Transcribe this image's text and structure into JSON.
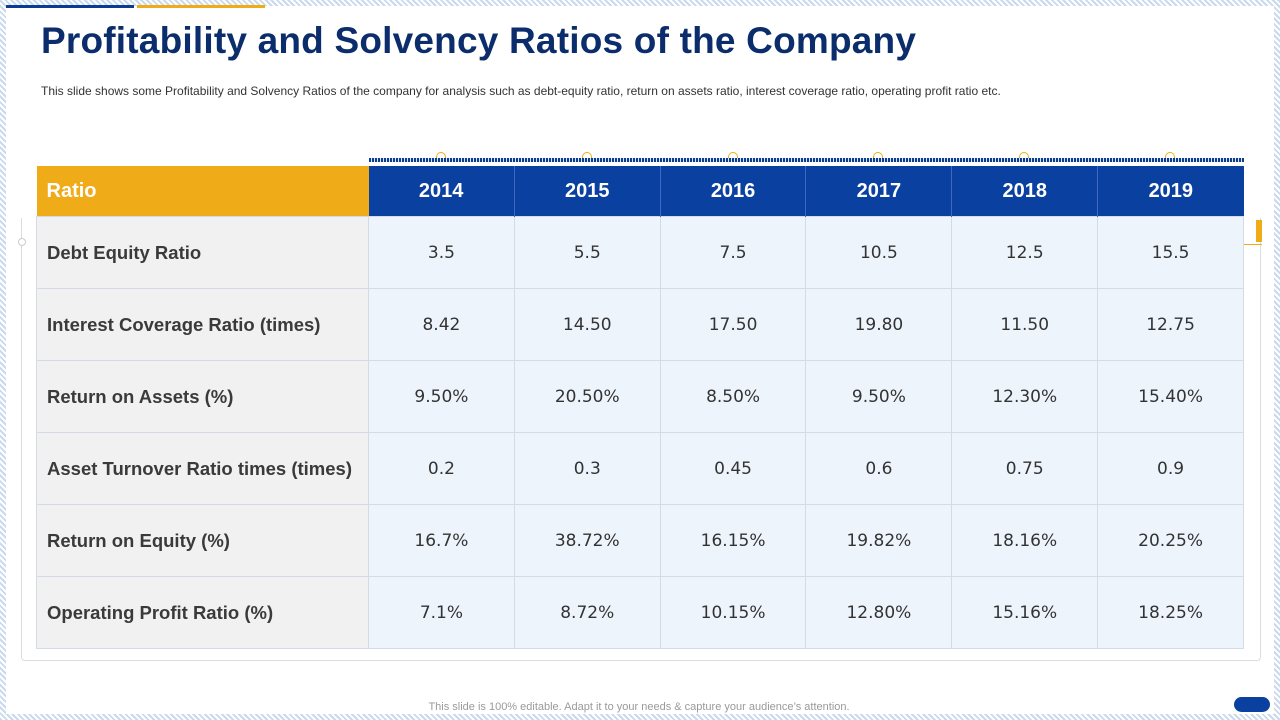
{
  "slide": {
    "title": "Profitability and Solvency Ratios of the Company",
    "subtitle": "This slide shows some Profitability and Solvency Ratios of the company for analysis such as debt-equity ratio, return on assets ratio, interest coverage  ratio, operating  profit ratio etc.",
    "footer_note": "This slide is 100% editable. Adapt it to your needs & capture your audience’s attention."
  },
  "colors": {
    "title": "#0b2d6b",
    "header_blue": "#0a40a0",
    "header_gold": "#f0ab18",
    "cell_bg": "#eef4fc",
    "label_bg": "#f1f1f1"
  },
  "table": {
    "label_header": "Ratio",
    "years": [
      "2014",
      "2015",
      "2016",
      "2017",
      "2018",
      "2019"
    ],
    "rows": [
      {
        "label": "Debt Equity Ratio",
        "values": [
          "3.5",
          "5.5",
          "7.5",
          "10.5",
          "12.5",
          "15.5"
        ]
      },
      {
        "label": "Interest Coverage Ratio (times)",
        "values": [
          "8.42",
          "14.50",
          "17.50",
          "19.80",
          "11.50",
          "12.75"
        ]
      },
      {
        "label": "Return on Assets (%)",
        "values": [
          "9.50%",
          "20.50%",
          "8.50%",
          "9.50%",
          "12.30%",
          "15.40%"
        ]
      },
      {
        "label": "Asset Turnover Ratio times (times)",
        "values": [
          "0.2",
          "0.3",
          "0.45",
          "0.6",
          "0.75",
          "0.9"
        ]
      },
      {
        "label": "Return on Equity (%)",
        "values": [
          "16.7%",
          "38.72%",
          "16.15%",
          "19.82%",
          "18.16%",
          "20.25%"
        ]
      },
      {
        "label": "Operating Profit Ratio (%)",
        "values": [
          "7.1%",
          "8.72%",
          "10.15%",
          "12.80%",
          "15.16%",
          "18.25%"
        ]
      }
    ]
  }
}
